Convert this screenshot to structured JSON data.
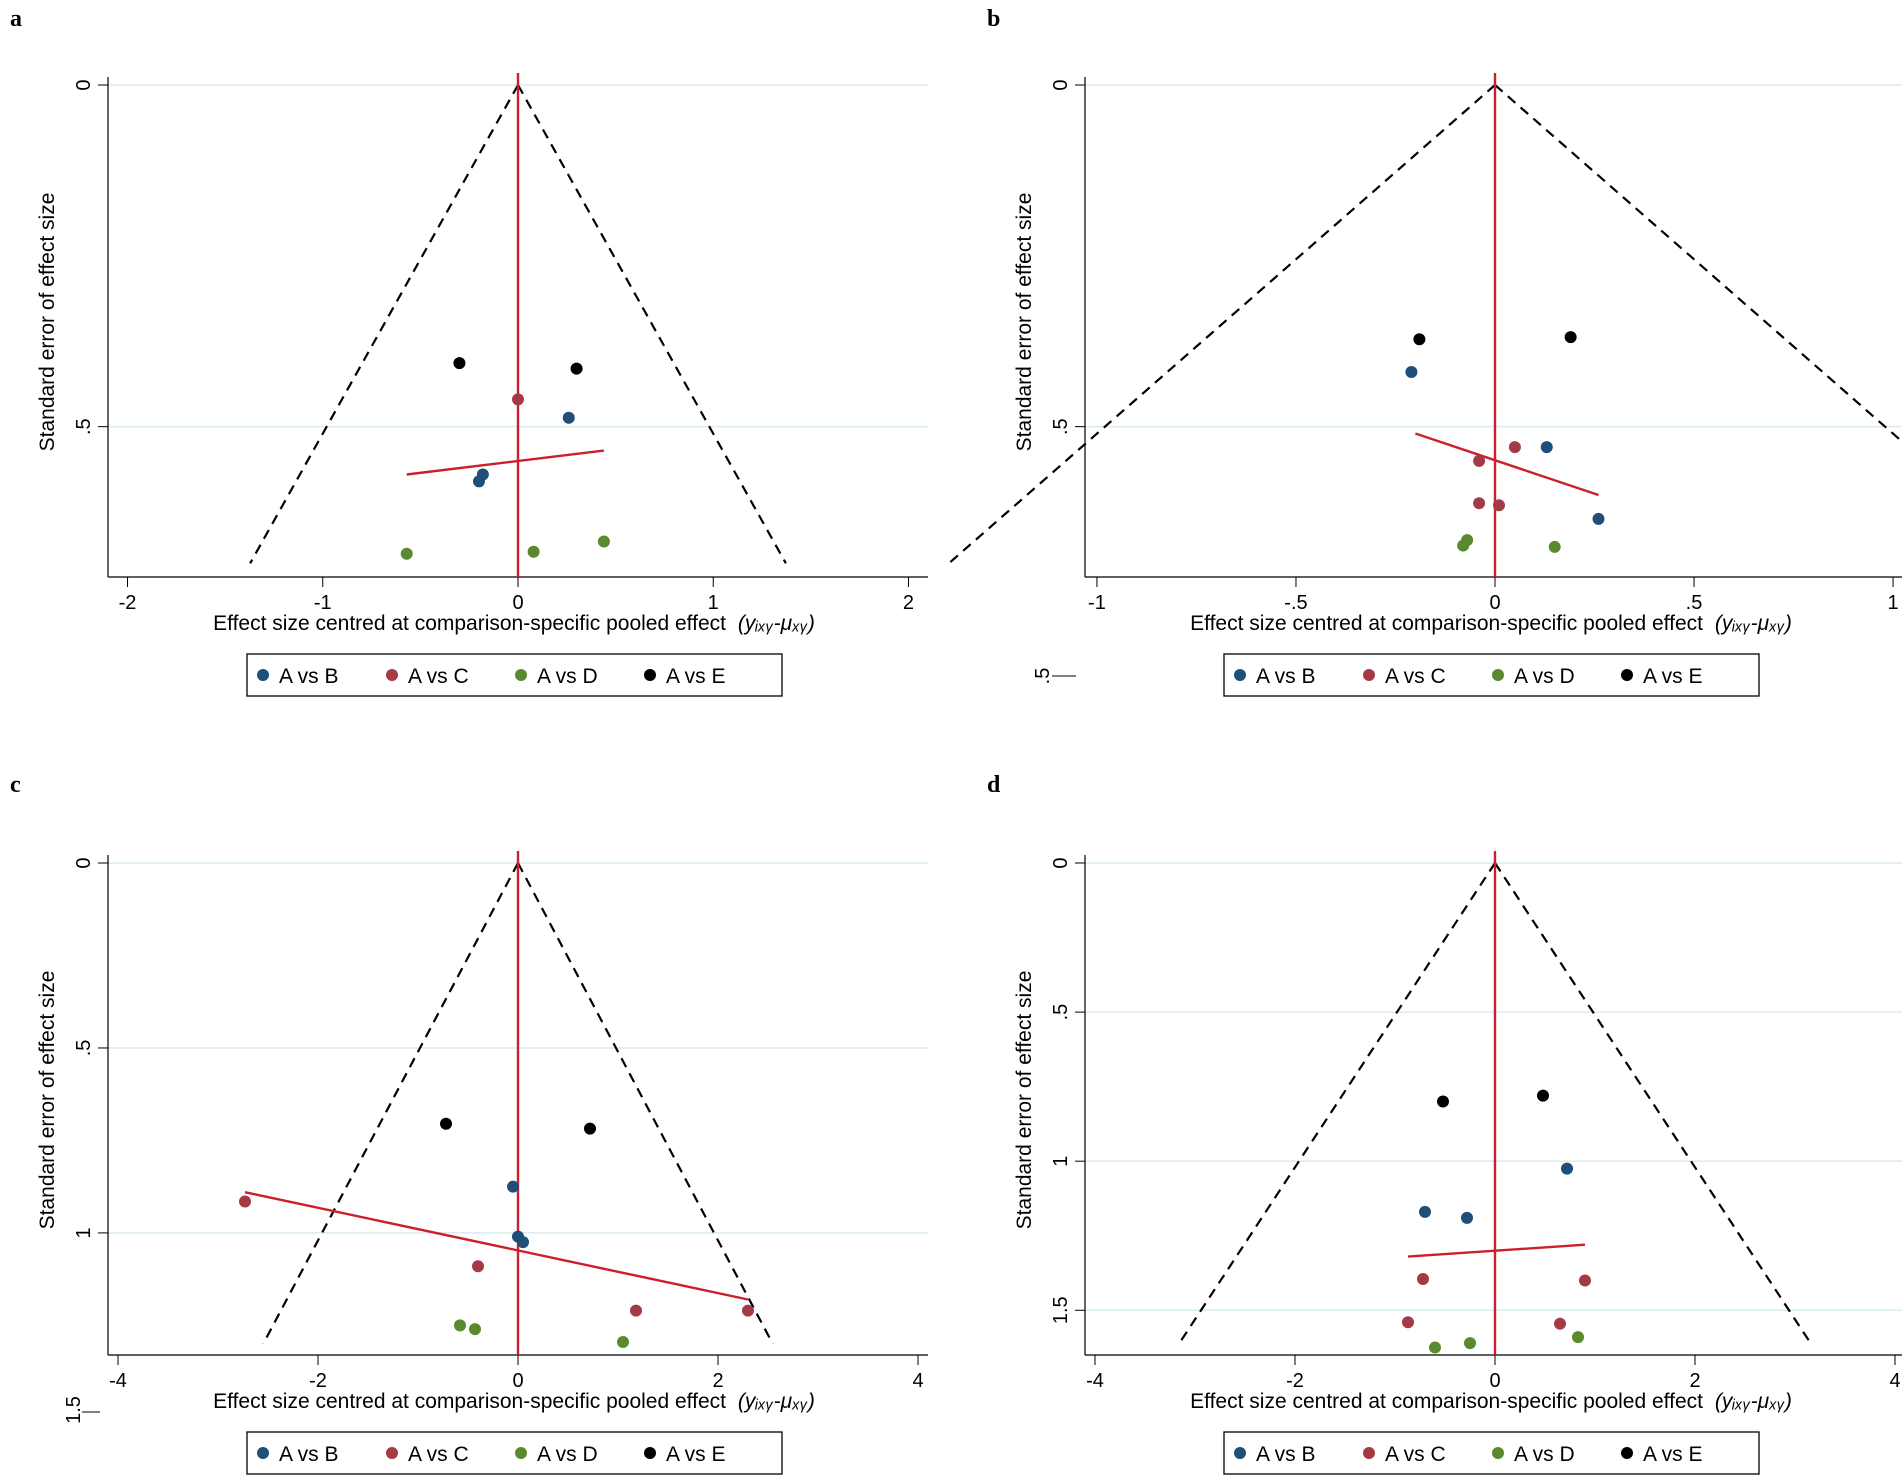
{
  "colors": {
    "A vs B": "#1f4e79",
    "A vs C": "#a33a45",
    "A vs D": "#5a8a2e",
    "A vs E": "#000000",
    "red_line": "#cc1f2b",
    "grid": "#d9ecee",
    "funnel": "#000000"
  },
  "chart_data": [
    {
      "panel": "a",
      "type": "scatter",
      "subtype": "comparison-adjusted funnel plot",
      "xlabel_main": "Effect size centred at comparison-specific pooled effect",
      "xlabel_formula": "(yᵢₓᵧ-μₓᵧ)",
      "ylabel": "Standard error of effect size",
      "xlim": [
        -2.1,
        2.1
      ],
      "ylim": [
        0,
        0.72
      ],
      "xticks": [
        -2,
        -1,
        0,
        1,
        2
      ],
      "xtick_labels": [
        "-2",
        "-1",
        "0",
        "1",
        "2"
      ],
      "yticks": [
        0,
        0.5
      ],
      "ytick_labels": [
        "0",
        ".5"
      ],
      "funnel_se_max": 0.7,
      "fit_line": [
        [
          -0.57,
          0.57
        ],
        [
          0.44,
          0.535
        ]
      ],
      "series": [
        {
          "name": "A vs B",
          "points": [
            [
              -0.2,
              0.58
            ],
            [
              -0.18,
              0.57
            ],
            [
              0.26,
              0.487
            ]
          ]
        },
        {
          "name": "A vs C",
          "points": [
            [
              0.0,
              0.46
            ]
          ]
        },
        {
          "name": "A vs D",
          "points": [
            [
              -0.57,
              0.686
            ],
            [
              0.08,
              0.683
            ],
            [
              0.44,
              0.668
            ]
          ]
        },
        {
          "name": "A vs E",
          "points": [
            [
              -0.3,
              0.407
            ],
            [
              0.3,
              0.415
            ]
          ]
        }
      ],
      "legend": [
        "A vs B",
        "A vs C",
        "A vs D",
        "A vs E"
      ]
    },
    {
      "panel": "b",
      "type": "scatter",
      "subtype": "comparison-adjusted funnel plot",
      "xlabel_main": "Effect size centred at comparison-specific pooled effect",
      "xlabel_formula": "(yᵢₓᵧ-μₓᵧ)",
      "ylabel": "Standard error of effect size",
      "xlim": [
        -1.03,
        1.03
      ],
      "ylim": [
        0,
        0.72
      ],
      "xticks": [
        -1,
        -0.5,
        0,
        0.5,
        1
      ],
      "xtick_labels": [
        "-1",
        "-.5",
        "0",
        ".5",
        "1"
      ],
      "yticks": [
        0,
        0.5
      ],
      "ytick_labels": [
        "0",
        ".5"
      ],
      "funnel_se_max": 0.7,
      "fit_line": [
        [
          -0.2,
          0.51
        ],
        [
          0.26,
          0.6
        ]
      ],
      "series": [
        {
          "name": "A vs B",
          "points": [
            [
              -0.21,
              0.42
            ],
            [
              0.13,
              0.53
            ],
            [
              0.26,
              0.635
            ]
          ]
        },
        {
          "name": "A vs C",
          "points": [
            [
              -0.04,
              0.55
            ],
            [
              0.05,
              0.53
            ],
            [
              -0.04,
              0.612
            ],
            [
              0.01,
              0.615
            ]
          ]
        },
        {
          "name": "A vs D",
          "points": [
            [
              -0.08,
              0.674
            ],
            [
              -0.07,
              0.666
            ],
            [
              0.15,
              0.676
            ]
          ]
        },
        {
          "name": "A vs E",
          "points": [
            [
              -0.19,
              0.372
            ],
            [
              0.19,
              0.369
            ]
          ]
        }
      ],
      "legend": [
        "A vs B",
        "A vs C",
        "A vs D",
        "A vs E"
      ],
      "stray_label": ".5"
    },
    {
      "panel": "c",
      "type": "scatter",
      "subtype": "comparison-adjusted funnel plot",
      "xlabel_main": "Effect size centred at comparison-specific pooled effect",
      "xlabel_formula": "(yᵢₓᵧ-μₓᵧ)",
      "ylabel": "Standard error of effect size",
      "xlim": [
        -4.1,
        4.1
      ],
      "ylim": [
        0,
        1.33
      ],
      "xticks": [
        -4,
        -2,
        0,
        2,
        4
      ],
      "xtick_labels": [
        "-4",
        "-2",
        "0",
        "2",
        "4"
      ],
      "yticks": [
        0,
        0.5,
        1
      ],
      "ytick_labels": [
        "0",
        ".5",
        "1"
      ],
      "funnel_se_max": 1.3,
      "fit_line": [
        [
          -2.73,
          0.89
        ],
        [
          2.3,
          1.18
        ]
      ],
      "series": [
        {
          "name": "A vs B",
          "points": [
            [
              -0.05,
              0.875
            ],
            [
              0.0,
              1.01
            ],
            [
              0.05,
              1.025
            ]
          ]
        },
        {
          "name": "A vs C",
          "points": [
            [
              -2.73,
              0.915
            ],
            [
              -0.4,
              1.09
            ],
            [
              1.18,
              1.21
            ],
            [
              2.3,
              1.21
            ]
          ]
        },
        {
          "name": "A vs D",
          "points": [
            [
              -0.58,
              1.25
            ],
            [
              -0.43,
              1.26
            ],
            [
              1.05,
              1.295
            ]
          ]
        },
        {
          "name": "A vs E",
          "points": [
            [
              -0.72,
              0.705
            ],
            [
              0.72,
              0.718
            ]
          ]
        }
      ],
      "legend": [
        "A vs B",
        "A vs C",
        "A vs D",
        "A vs E"
      ],
      "stray_label": "1.5"
    },
    {
      "panel": "d",
      "type": "scatter",
      "subtype": "comparison-adjusted funnel plot",
      "xlabel_main": "Effect size centred at comparison-specific pooled effect",
      "xlabel_formula": "(yᵢₓᵧ-μₓᵧ)",
      "ylabel": "Standard error of effect size",
      "xlim": [
        -4.1,
        4.1
      ],
      "ylim": [
        0,
        1.65
      ],
      "xticks": [
        -4,
        -2,
        0,
        2,
        4
      ],
      "xtick_labels": [
        "-4",
        "-2",
        "0",
        "2",
        "4"
      ],
      "yticks": [
        0,
        0.5,
        1,
        1.5
      ],
      "ytick_labels": [
        "0",
        ".5",
        "1",
        "1.5"
      ],
      "funnel_se_max": 1.6,
      "fit_line": [
        [
          -0.87,
          1.32
        ],
        [
          0.9,
          1.28
        ]
      ],
      "series": [
        {
          "name": "A vs B",
          "points": [
            [
              0.72,
              1.025
            ],
            [
              -0.7,
              1.17
            ],
            [
              -0.28,
              1.19
            ]
          ]
        },
        {
          "name": "A vs C",
          "points": [
            [
              -0.72,
              1.395
            ],
            [
              0.9,
              1.4
            ],
            [
              -0.87,
              1.54
            ],
            [
              0.65,
              1.545
            ]
          ]
        },
        {
          "name": "A vs D",
          "points": [
            [
              -0.6,
              1.625
            ],
            [
              -0.25,
              1.61
            ],
            [
              0.83,
              1.59
            ]
          ]
        },
        {
          "name": "A vs E",
          "points": [
            [
              -0.52,
              0.8
            ],
            [
              0.48,
              0.78
            ]
          ]
        }
      ],
      "legend": [
        "A vs B",
        "A vs C",
        "A vs D",
        "A vs E"
      ]
    }
  ]
}
